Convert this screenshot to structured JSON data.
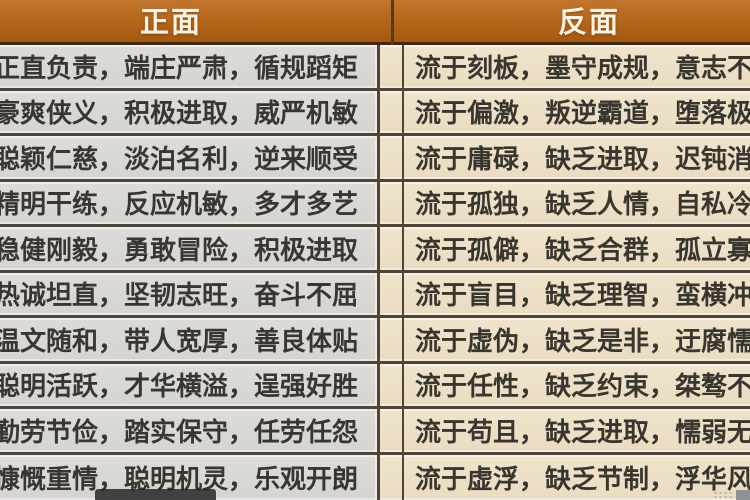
{
  "header": {
    "positive_label": "正面",
    "negative_label": "反面"
  },
  "rows": [
    {
      "positive": "正直负责，端庄严肃，循规蹈矩",
      "negative": "流于刻板，墨守成规，意志不"
    },
    {
      "positive": "豪爽侠义，积极进取，威严机敏",
      "negative": "流于偏激，叛逆霸道，堕落极"
    },
    {
      "positive": "聪颖仁慈，淡泊名利，逆来顺受",
      "negative": "流于庸碌，缺乏进取，迟钝消"
    },
    {
      "positive": "精明干练，反应机敏，多才多艺",
      "negative": "流于孤独，缺乏人情，自私冷"
    },
    {
      "positive": "稳健刚毅，勇敢冒险，积极进取",
      "negative": "流于孤僻，缺乏合群，孤立寡"
    },
    {
      "positive": "热诚坦直，坚韧志旺，奋斗不屈",
      "negative": "流于盲目，缺乏理智，蛮横冲"
    },
    {
      "positive": "温文随和，带人宽厚，善良体贴",
      "negative": "流于虚伪，缺乏是非，迂腐懦"
    },
    {
      "positive": "聪明活跃，才华横溢，逞强好胜",
      "negative": "流于任性，缺乏约束，桀骜不"
    },
    {
      "positive": "勤劳节俭，踏实保守，任劳任怨",
      "negative": "流于苟且，缺乏进取，懦弱无"
    },
    {
      "positive": "慷慨重情，聪明机灵，乐观开朗",
      "negative": "流于虚浮，缺乏节制，浮华风"
    }
  ],
  "colors": {
    "header_bg": "#b26417",
    "header_text": "#f8f3e6",
    "left_cell_bg": "#d8d7d3",
    "right_cell_bg": "#ecdfc6",
    "separator_line": "#4e4437",
    "body_text": "#38362f"
  }
}
